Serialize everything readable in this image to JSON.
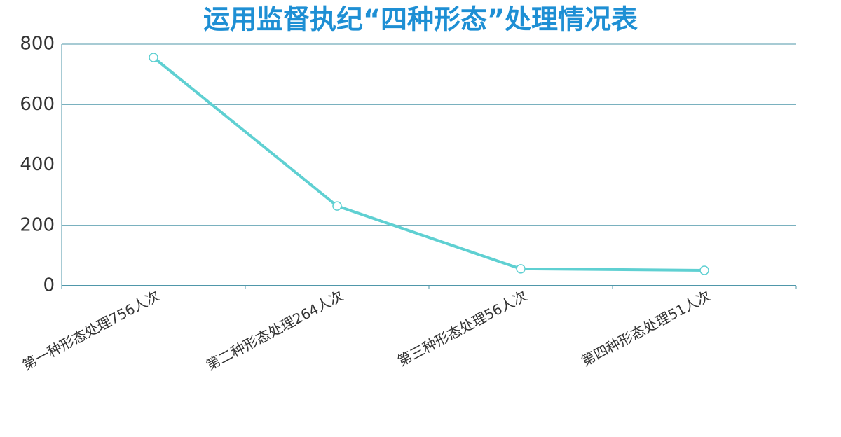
{
  "chart_data": {
    "type": "line",
    "title": "运用监督执纪“四种形态”处理情况表",
    "categories": [
      "第一种形态处理756人次",
      "第二种形态处理264人次",
      "第三种形态处理56人次",
      "第四种形态处理51人次"
    ],
    "values": [
      756,
      264,
      56,
      51
    ],
    "color": "#5fd0d2",
    "ylim": [
      0,
      800
    ],
    "yticks": [
      0,
      200,
      400,
      600,
      800
    ],
    "grid": true
  }
}
